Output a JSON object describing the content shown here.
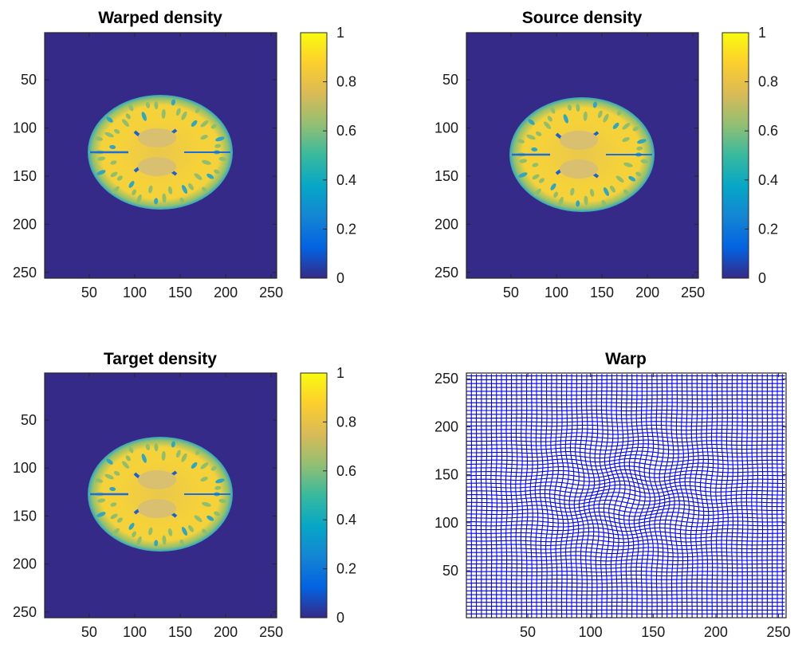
{
  "figure": {
    "colors": {
      "colormap": [
        "#352a87",
        "#0363e1",
        "#1485d4",
        "#06a7c6",
        "#38b99e",
        "#92bf73",
        "#d9ba56",
        "#fcce2e",
        "#f9fb0e"
      ],
      "background": "#ffffff",
      "axis": "#262626",
      "warp_grid": "#0000ff",
      "image_bg": "#352a87",
      "brain_main": "#f5d13a",
      "brain_gray": "#e9c84c",
      "brain_edge": "#2fa7c3"
    }
  },
  "chart_data": [
    {
      "id": "warped",
      "type": "heatmap",
      "title": "Warped density",
      "xticks": [
        "50",
        "100",
        "150",
        "200",
        "250"
      ],
      "yticks": [
        "50",
        "100",
        "150",
        "200",
        "250"
      ],
      "xlim": [
        1,
        256
      ],
      "ylim": [
        256,
        1
      ],
      "image_size": [
        256,
        256
      ],
      "colorbar": {
        "ticks": [
          "0",
          "0.2",
          "0.4",
          "0.6",
          "0.8",
          "1"
        ],
        "range": [
          0,
          1
        ]
      }
    },
    {
      "id": "source",
      "type": "heatmap",
      "title": "Source density",
      "xticks": [
        "50",
        "100",
        "150",
        "200",
        "250"
      ],
      "yticks": [
        "50",
        "100",
        "150",
        "200",
        "250"
      ],
      "xlim": [
        1,
        256
      ],
      "ylim": [
        256,
        1
      ],
      "image_size": [
        256,
        256
      ],
      "colorbar": {
        "ticks": [
          "0",
          "0.2",
          "0.4",
          "0.6",
          "0.8",
          "1"
        ],
        "range": [
          0,
          1
        ]
      }
    },
    {
      "id": "target",
      "type": "heatmap",
      "title": "Target density",
      "xticks": [
        "50",
        "100",
        "150",
        "200",
        "250"
      ],
      "yticks": [
        "50",
        "100",
        "150",
        "200",
        "250"
      ],
      "xlim": [
        1,
        256
      ],
      "ylim": [
        256,
        1
      ],
      "image_size": [
        256,
        256
      ],
      "colorbar": {
        "ticks": [
          "0",
          "0.2",
          "0.4",
          "0.6",
          "0.8",
          "1"
        ],
        "range": [
          0,
          1
        ]
      }
    },
    {
      "id": "warp",
      "type": "line",
      "title": "Warp",
      "xticks": [
        "50",
        "100",
        "150",
        "200",
        "250"
      ],
      "yticks": [
        "50",
        "100",
        "150",
        "200",
        "250"
      ],
      "xlim": [
        1,
        256
      ],
      "ylim": [
        1,
        256
      ],
      "grid_spacing": 4
    }
  ]
}
